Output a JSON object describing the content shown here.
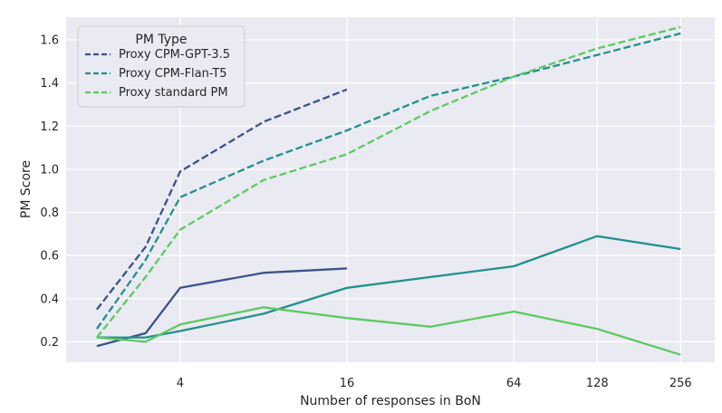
{
  "chart_data": {
    "type": "line",
    "title": "",
    "xlabel": "Number of responses in BoN",
    "ylabel": "PM Score",
    "x_scale": "log2",
    "x_ticks": [
      4,
      16,
      64,
      128,
      256
    ],
    "x_tick_labels": [
      "4",
      "16",
      "64",
      "128",
      "256"
    ],
    "xlim": [
      1.55,
      340
    ],
    "y_ticks": [
      0.2,
      0.4,
      0.6,
      0.8,
      1.0,
      1.2,
      1.4,
      1.6
    ],
    "y_tick_labels": [
      "0.2",
      "0.4",
      "0.6",
      "0.8",
      "1.0",
      "1.2",
      "1.4",
      "1.6"
    ],
    "ylim": [
      0.105,
      1.705
    ],
    "grid": true,
    "legend": {
      "title": "PM Type",
      "placement": "top-left",
      "entries": [
        "Proxy CPM-GPT-3.5",
        "Proxy CPM-Flan-T5",
        "Proxy standard PM"
      ]
    },
    "series": [
      {
        "name": "Proxy CPM-GPT-3.5",
        "style": "dashed",
        "color": "#3b528b",
        "x": [
          2,
          3,
          4,
          8,
          16
        ],
        "y": [
          0.35,
          0.64,
          0.99,
          1.22,
          1.37
        ]
      },
      {
        "name": "Proxy CPM-Flan-T5",
        "style": "dashed",
        "color": "#21918c",
        "x": [
          2,
          3,
          4,
          8,
          16,
          32,
          64,
          128,
          256
        ],
        "y": [
          0.26,
          0.58,
          0.87,
          1.04,
          1.18,
          1.34,
          1.43,
          1.53,
          1.63
        ]
      },
      {
        "name": "Proxy standard PM",
        "style": "dashed",
        "color": "#5ec962",
        "x": [
          2,
          3,
          4,
          8,
          16,
          32,
          64,
          128,
          256
        ],
        "y": [
          0.22,
          0.5,
          0.72,
          0.95,
          1.07,
          1.27,
          1.43,
          1.56,
          1.66
        ]
      },
      {
        "style": "solid",
        "color": "#3b528b",
        "x": [
          2,
          3,
          4,
          8,
          16
        ],
        "y": [
          0.18,
          0.24,
          0.45,
          0.52,
          0.54
        ]
      },
      {
        "style": "solid",
        "color": "#21918c",
        "x": [
          2,
          3,
          4,
          8,
          16,
          32,
          64,
          128,
          256
        ],
        "y": [
          0.22,
          0.22,
          0.25,
          0.33,
          0.45,
          0.5,
          0.55,
          0.69,
          0.63
        ]
      },
      {
        "style": "solid",
        "color": "#5ec962",
        "x": [
          2,
          3,
          4,
          8,
          16,
          32,
          64,
          128,
          256
        ],
        "y": [
          0.22,
          0.2,
          0.28,
          0.36,
          0.31,
          0.27,
          0.34,
          0.26,
          0.14
        ]
      }
    ]
  },
  "colors": {
    "plot_background": "#eaeaf2",
    "grid": "#ffffff",
    "text": "#262626"
  }
}
